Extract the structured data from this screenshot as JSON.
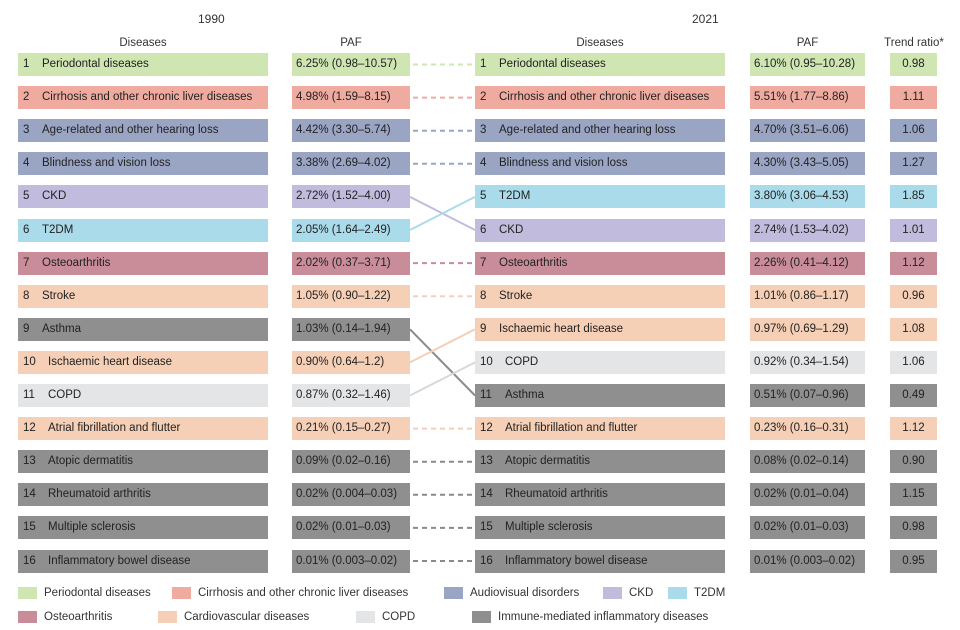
{
  "headers": {
    "year_left": "1990",
    "year_right": "2021",
    "diseases": "Diseases",
    "paf": "PAF",
    "trend": "Trend ratio*"
  },
  "colors": {
    "periodontal": "#cfe6b2",
    "cirrhosis": "#efaba0",
    "audiovisual": "#9aa5c4",
    "ckd": "#c1bcdd",
    "t2dm": "#aadbea",
    "osteoarthritis": "#c98c99",
    "cardiovascular": "#f5cfb6",
    "copd": "#e4e5e6",
    "immune": "#8f8f8f"
  },
  "chart_data": {
    "type": "table",
    "rows_1990": [
      {
        "rank": "1",
        "disease": "Periodontal diseases",
        "paf": "6.25% (0.98–10.57)",
        "group": "periodontal"
      },
      {
        "rank": "2",
        "disease": "Cirrhosis and other chronic liver diseases",
        "paf": "4.98% (1.59–8.15)",
        "group": "cirrhosis"
      },
      {
        "rank": "3",
        "disease": "Age-related and other hearing loss",
        "paf": "4.42% (3.30–5.74)",
        "group": "audiovisual"
      },
      {
        "rank": "4",
        "disease": "Blindness and vision loss",
        "paf": "3.38% (2.69–4.02)",
        "group": "audiovisual"
      },
      {
        "rank": "5",
        "disease": "CKD",
        "paf": "2.72% (1.52–4.00)",
        "group": "ckd"
      },
      {
        "rank": "6",
        "disease": "T2DM",
        "paf": "2.05% (1.64–2.49)",
        "group": "t2dm"
      },
      {
        "rank": "7",
        "disease": "Osteoarthritis",
        "paf": "2.02% (0.37–3.71)",
        "group": "osteoarthritis"
      },
      {
        "rank": "8",
        "disease": "Stroke",
        "paf": "1.05% (0.90–1.22)",
        "group": "cardiovascular"
      },
      {
        "rank": "9",
        "disease": "Asthma",
        "paf": "1.03% (0.14–1.94)",
        "group": "immune"
      },
      {
        "rank": "10",
        "disease": "Ischaemic heart disease",
        "paf": "0.90% (0.64–1.2)",
        "group": "cardiovascular"
      },
      {
        "rank": "11",
        "disease": "COPD",
        "paf": "0.87% (0.32–1.46)",
        "group": "copd"
      },
      {
        "rank": "12",
        "disease": "Atrial fibrillation and flutter",
        "paf": "0.21% (0.15–0.27)",
        "group": "cardiovascular"
      },
      {
        "rank": "13",
        "disease": "Atopic dermatitis",
        "paf": "0.09% (0.02–0.16)",
        "group": "immune"
      },
      {
        "rank": "14",
        "disease": "Rheumatoid arthritis",
        "paf": "0.02% (0.004–0.03)",
        "group": "immune"
      },
      {
        "rank": "15",
        "disease": "Multiple sclerosis",
        "paf": "0.02% (0.01–0.03)",
        "group": "immune"
      },
      {
        "rank": "16",
        "disease": "Inflammatory bowel disease",
        "paf": "0.01% (0.003–0.02)",
        "group": "immune"
      }
    ],
    "rows_2021": [
      {
        "rank": "1",
        "disease": "Periodontal diseases",
        "paf": "6.10% (0.95–10.28)",
        "trend": "0.98",
        "group": "periodontal"
      },
      {
        "rank": "2",
        "disease": "Cirrhosis and other chronic liver diseases",
        "paf": "5.51% (1.77–8.86)",
        "trend": "1.11",
        "group": "cirrhosis"
      },
      {
        "rank": "3",
        "disease": "Age-related and other hearing loss",
        "paf": "4.70% (3.51–6.06)",
        "trend": "1.06",
        "group": "audiovisual"
      },
      {
        "rank": "4",
        "disease": "Blindness and vision loss",
        "paf": "4.30% (3.43–5.05)",
        "trend": "1.27",
        "group": "audiovisual"
      },
      {
        "rank": "5",
        "disease": "T2DM",
        "paf": "3.80% (3.06–4.53)",
        "trend": "1.85",
        "group": "t2dm"
      },
      {
        "rank": "6",
        "disease": "CKD",
        "paf": "2.74% (1.53–4.02)",
        "trend": "1.01",
        "group": "ckd"
      },
      {
        "rank": "7",
        "disease": "Osteoarthritis",
        "paf": "2.26% (0.41–4.12)",
        "trend": "1.12",
        "group": "osteoarthritis"
      },
      {
        "rank": "8",
        "disease": "Stroke",
        "paf": "1.01% (0.86–1.17)",
        "trend": "0.96",
        "group": "cardiovascular"
      },
      {
        "rank": "9",
        "disease": "Ischaemic heart disease",
        "paf": "0.97% (0.69–1.29)",
        "trend": "1.08",
        "group": "cardiovascular"
      },
      {
        "rank": "10",
        "disease": "COPD",
        "paf": "0.92% (0.34–1.54)",
        "trend": "1.06",
        "group": "copd"
      },
      {
        "rank": "11",
        "disease": "Asthma",
        "paf": "0.51% (0.07–0.96)",
        "trend": "0.49",
        "group": "immune"
      },
      {
        "rank": "12",
        "disease": "Atrial fibrillation and flutter",
        "paf": "0.23% (0.16–0.31)",
        "trend": "1.12",
        "group": "cardiovascular"
      },
      {
        "rank": "13",
        "disease": "Atopic dermatitis",
        "paf": "0.08% (0.02–0.14)",
        "trend": "0.90",
        "group": "immune"
      },
      {
        "rank": "14",
        "disease": "Rheumatoid arthritis",
        "paf": "0.02% (0.01–0.04)",
        "trend": "1.15",
        "group": "immune"
      },
      {
        "rank": "15",
        "disease": "Multiple sclerosis",
        "paf": "0.02% (0.01–0.03)",
        "trend": "0.98",
        "group": "immune"
      },
      {
        "rank": "16",
        "disease": "Inflammatory bowel disease",
        "paf": "0.01% (0.003–0.02)",
        "trend": "0.95",
        "group": "immune"
      }
    ],
    "rank_changes": [
      {
        "from": 5,
        "to": 6,
        "group": "ckd"
      },
      {
        "from": 6,
        "to": 5,
        "group": "t2dm"
      },
      {
        "from": 9,
        "to": 11,
        "group": "immune"
      },
      {
        "from": 10,
        "to": 9,
        "group": "cardiovascular"
      },
      {
        "from": 11,
        "to": 10,
        "group": "copd"
      }
    ],
    "legend": [
      {
        "label": "Periodontal diseases",
        "group": "periodontal"
      },
      {
        "label": "Cirrhosis and other chronic liver diseases",
        "group": "cirrhosis"
      },
      {
        "label": "Audiovisual disorders",
        "group": "audiovisual"
      },
      {
        "label": "CKD",
        "group": "ckd"
      },
      {
        "label": "T2DM",
        "group": "t2dm"
      },
      {
        "label": "Osteoarthritis",
        "group": "osteoarthritis"
      },
      {
        "label": "Cardiovascular diseases",
        "group": "cardiovascular"
      },
      {
        "label": "COPD",
        "group": "copd"
      },
      {
        "label": "Immune-mediated inflammatory diseases",
        "group": "immune"
      }
    ]
  }
}
